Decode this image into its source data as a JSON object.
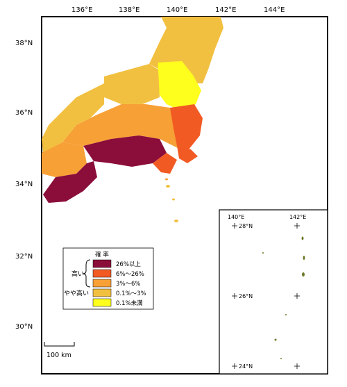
{
  "colors": {
    "very_high": "#8b0d3a",
    "high": "#f25a24",
    "mid": "#f7a036",
    "low": "#f2c040",
    "very_low": "#ffff1e",
    "land_inset": "#6b7a2a"
  },
  "axes": {
    "lon_labels": [
      "136°E",
      "138°E",
      "140°E",
      "142°E",
      "144°E"
    ],
    "lat_labels": [
      "38°N",
      "36°N",
      "34°N",
      "32°N",
      "30°N"
    ]
  },
  "legend": {
    "title": "確 率",
    "group_high": "高い",
    "group_mid": "やや高い",
    "items": [
      {
        "label": "26%以上",
        "color": "#8b0d3a"
      },
      {
        "label": "6%～26%",
        "color": "#f25a24"
      },
      {
        "label": "3%～6%",
        "color": "#f7a036"
      },
      {
        "label": "0.1%～3%",
        "color": "#f2c040"
      },
      {
        "label": "0.1%未満",
        "color": "#ffff1e"
      }
    ]
  },
  "scale_bar": {
    "label": "100 km"
  },
  "inset": {
    "lon_labels": [
      "140°E",
      "142°E"
    ],
    "lat_labels": [
      "28°N",
      "26°N",
      "24°N"
    ]
  }
}
